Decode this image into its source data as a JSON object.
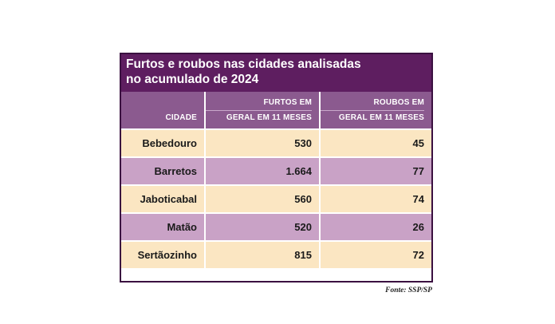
{
  "chart_data": {
    "type": "table",
    "title": [
      "Furtos e roubos nas cidades analisadas",
      "no acumulado de 2024"
    ],
    "columns": [
      {
        "lines": [
          "CIDADE"
        ]
      },
      {
        "lines": [
          "FURTOS EM",
          "GERAL EM 11 MESES"
        ]
      },
      {
        "lines": [
          "ROUBOS EM",
          "GERAL EM 11 MESES"
        ]
      }
    ],
    "rows": [
      {
        "city": "Bebedouro",
        "furtos": "530",
        "roubos": "45"
      },
      {
        "city": "Barretos",
        "furtos": "1.664",
        "roubos": "77"
      },
      {
        "city": "Jaboticabal",
        "furtos": "560",
        "roubos": "74"
      },
      {
        "city": "Matão",
        "furtos": "520",
        "roubos": "26"
      },
      {
        "city": "Sertãozinho",
        "furtos": "815",
        "roubos": "72"
      }
    ],
    "colors": {
      "title_bg": "#5e1e60",
      "header_bg": "#8b5a8f",
      "row_light": "#fbe6c2",
      "row_dark": "#c9a2c6"
    }
  },
  "source": "Fonte: SSP/SP"
}
